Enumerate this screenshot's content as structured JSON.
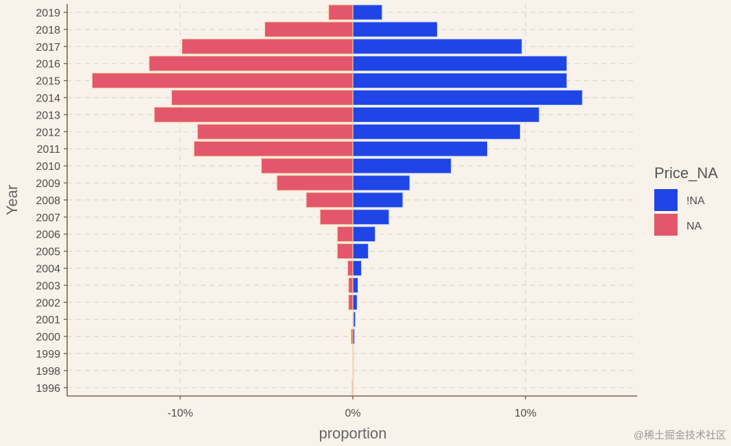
{
  "chart_data": {
    "type": "bar",
    "orientation": "horizontal",
    "title": "",
    "xlabel": "proportion",
    "ylabel": "Year",
    "xlim": [
      -16.5,
      16.5
    ],
    "xticks": [
      -10,
      0,
      10
    ],
    "xtick_labels": [
      "-10%",
      "0%",
      "10%"
    ],
    "categories": [
      "1996",
      "1998",
      "1999",
      "2000",
      "2001",
      "2002",
      "2003",
      "2004",
      "2005",
      "2006",
      "2007",
      "2008",
      "2009",
      "2010",
      "2011",
      "2012",
      "2013",
      "2014",
      "2015",
      "2016",
      "2017",
      "2018",
      "2019"
    ],
    "series": [
      {
        "name": "!NA",
        "color": "#1f45e6",
        "values": [
          0.0,
          0.05,
          0.05,
          0.1,
          0.15,
          0.25,
          0.3,
          0.5,
          0.9,
          1.3,
          2.1,
          2.9,
          3.3,
          5.7,
          7.8,
          9.7,
          10.8,
          13.3,
          12.4,
          12.4,
          9.8,
          4.9,
          1.7
        ]
      },
      {
        "name": "NA",
        "color": "#e4566c",
        "values": [
          -0.05,
          0.0,
          0.0,
          -0.1,
          0.0,
          -0.25,
          -0.25,
          -0.3,
          -0.9,
          -0.9,
          -1.9,
          -2.7,
          -4.4,
          -5.3,
          -9.2,
          -9.0,
          -11.5,
          -10.5,
          -15.1,
          -11.8,
          -9.9,
          -5.1,
          -1.4
        ]
      }
    ],
    "legend": {
      "title": "Price_NA",
      "position": "right",
      "entries": [
        "!NA",
        "NA"
      ]
    },
    "grid": true
  },
  "watermark": "@稀土掘金技术社区"
}
